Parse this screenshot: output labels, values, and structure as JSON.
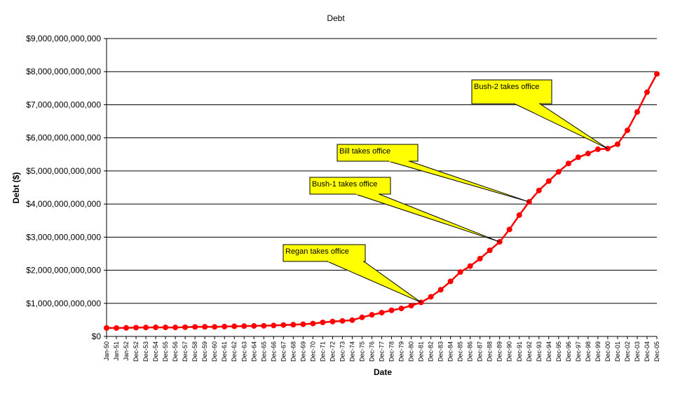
{
  "chart_data": {
    "type": "line",
    "title": "Debt",
    "xlabel": "Date",
    "ylabel": "Debt ($)",
    "ylim": [
      0,
      9000000000000
    ],
    "grid": true,
    "legend": "none",
    "y_ticks": [
      {
        "value": 0,
        "label": "$0"
      },
      {
        "value": 1000000000000,
        "label": "$1,000,000,000,000"
      },
      {
        "value": 2000000000000,
        "label": "$2,000,000,000,000"
      },
      {
        "value": 3000000000000,
        "label": "$3,000,000,000,000"
      },
      {
        "value": 4000000000000,
        "label": "$4,000,000,000,000"
      },
      {
        "value": 5000000000000,
        "label": "$5,000,000,000,000"
      },
      {
        "value": 6000000000000,
        "label": "$6,000,000,000,000"
      },
      {
        "value": 7000000000000,
        "label": "$7,000,000,000,000"
      },
      {
        "value": 8000000000000,
        "label": "$8,000,000,000,000"
      },
      {
        "value": 9000000000000,
        "label": "$9,000,000,000,000"
      }
    ],
    "categories": [
      "Jan-50",
      "Jan-51",
      "Jan-52",
      "Dec-52",
      "Dec-53",
      "Dec-54",
      "Dec-55",
      "Dec-56",
      "Dec-57",
      "Dec-58",
      "Dec-59",
      "Dec-60",
      "Dec-61",
      "Dec-62",
      "Dec-63",
      "Dec-64",
      "Dec-65",
      "Dec-66",
      "Dec-67",
      "Dec-68",
      "Dec-69",
      "Dec-70",
      "Dec-71",
      "Dec-72",
      "Dec-73",
      "Dec-74",
      "Dec-75",
      "Dec-76",
      "Dec-77",
      "Dec-78",
      "Dec-79",
      "Dec-80",
      "Dec-81",
      "Dec-82",
      "Dec-83",
      "Dec-84",
      "Dec-85",
      "Dec-86",
      "Dec-87",
      "Dec-88",
      "Dec-89",
      "Dec-90",
      "Dec-91",
      "Dec-92",
      "Dec-93",
      "Dec-94",
      "Dec-95",
      "Dec-96",
      "Dec-97",
      "Dec-98",
      "Dec-99",
      "Dec-00",
      "Dec-01",
      "Dec-02",
      "Dec-03",
      "Dec-04",
      "Dec-05"
    ],
    "series": [
      {
        "color": "#ff0000",
        "values": [
          257000000000,
          255000000000,
          259000000000,
          266000000000,
          271000000000,
          274000000000,
          273000000000,
          272000000000,
          279000000000,
          287000000000,
          291000000000,
          289000000000,
          298000000000,
          306000000000,
          312000000000,
          317000000000,
          321000000000,
          330000000000,
          345000000000,
          354000000000,
          368000000000,
          389000000000,
          424000000000,
          450000000000,
          469000000000,
          492000000000,
          576000000000,
          653000000000,
          718000000000,
          789000000000,
          845000000000,
          930000000000,
          1028000000000,
          1197000000000,
          1410000000000,
          1663000000000,
          1945000000000,
          2125000000000,
          2350000000000,
          2602000000000,
          2857000000000,
          3233000000000,
          3665000000000,
          4065000000000,
          4411000000000,
          4693000000000,
          4974000000000,
          5225000000000,
          5413000000000,
          5526000000000,
          5656000000000,
          5674000000000,
          5807000000000,
          6228000000000,
          6783000000000,
          7379000000000,
          7933000000000
        ]
      }
    ],
    "annotations": [
      {
        "text": "Regan takes office",
        "point_index": 32
      },
      {
        "text": "Bush-1 takes office",
        "point_index": 40
      },
      {
        "text": "Bill takes office",
        "point_index": 43
      },
      {
        "text": "Bush-2 takes office",
        "point_index": 51
      }
    ],
    "callout_color": "#ffff00"
  }
}
